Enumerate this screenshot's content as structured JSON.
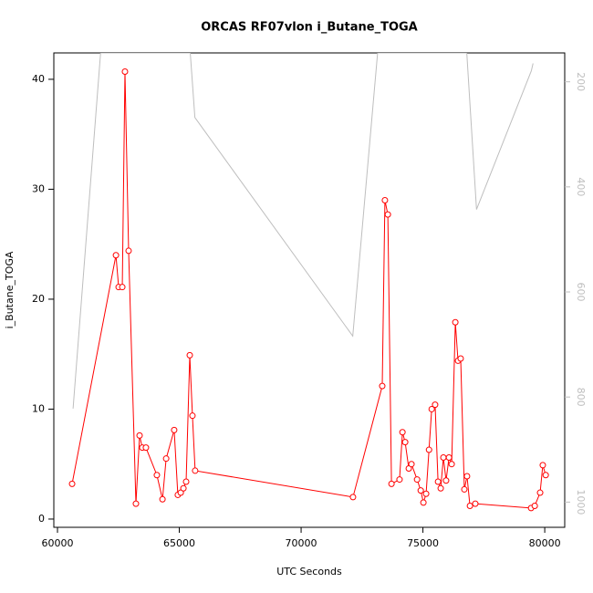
{
  "chart_data": {
    "type": "line",
    "title": "ORCAS RF07vlon i_Butane_TOGA",
    "x_label": "UTC Seconds",
    "y_label": "i_Butane_TOGA",
    "xlim": [
      59850,
      80820
    ],
    "xticks": [
      60000,
      65000,
      70000,
      75000,
      80000
    ],
    "ylim": [
      -0.75,
      42.4
    ],
    "yticks": [
      0,
      10,
      20,
      30,
      40
    ],
    "y2lim": [
      1048,
      145
    ],
    "y2ticks": [
      200,
      400,
      600,
      800,
      1000
    ],
    "series": [
      {
        "color": "#bebebe",
        "axis": "y2",
        "x": [
          60640,
          61770,
          65450,
          65640,
          72120,
          73140,
          76800,
          77200,
          79450,
          79520
        ],
        "values": [
          822,
          145,
          145,
          268,
          684,
          145,
          145,
          443,
          179,
          165
        ]
      },
      {
        "color": "#ff0000",
        "marker": "circle",
        "x": [
          60600,
          62400,
          62510,
          62660,
          62770,
          62920,
          63220,
          63370,
          63480,
          63630,
          64080,
          64310,
          64460,
          64790,
          64940,
          65060,
          65170,
          65280,
          65430,
          65540,
          65650,
          72130,
          73330,
          73440,
          73560,
          73710,
          74040,
          74160,
          74270,
          74420,
          74530,
          74760,
          74910,
          75020,
          75130,
          75250,
          75360,
          75500,
          75620,
          75730,
          75840,
          75950,
          76070,
          76180,
          76330,
          76440,
          76550,
          76700,
          76810,
          76930,
          77150,
          79440,
          79590,
          79810,
          79920,
          80040
        ],
        "values": [
          3.2,
          24.0,
          21.1,
          21.1,
          40.7,
          24.4,
          1.4,
          7.6,
          6.5,
          6.5,
          4.0,
          1.8,
          5.5,
          8.1,
          2.2,
          2.4,
          2.8,
          3.4,
          14.9,
          9.4,
          4.4,
          2.0,
          12.1,
          29.0,
          27.7,
          3.2,
          3.6,
          7.9,
          7.0,
          4.6,
          5.0,
          3.6,
          2.6,
          1.5,
          2.3,
          6.3,
          10.0,
          10.4,
          3.4,
          2.8,
          5.6,
          3.5,
          5.6,
          5.0,
          17.9,
          14.4,
          14.6,
          2.7,
          3.9,
          1.2,
          1.4,
          1.0,
          1.2,
          2.4,
          4.9,
          4.0
        ]
      }
    ]
  }
}
